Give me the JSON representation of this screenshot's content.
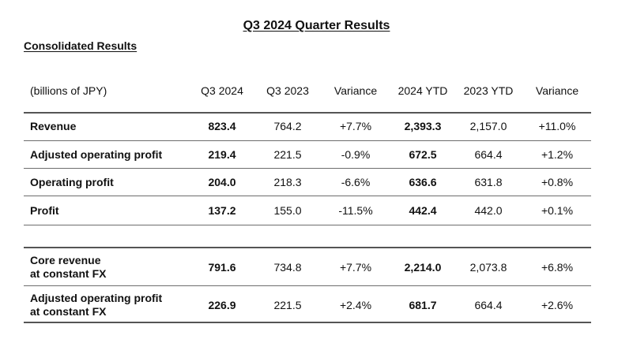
{
  "title": "Q3 2024 Quarter Results",
  "subtitle": "Consolidated Results",
  "headers": {
    "unit": "(billions of JPY)",
    "q3_2024": "Q3 2024",
    "q3_2023": "Q3 2023",
    "variance_q": "Variance",
    "ytd_2024": "2024 YTD",
    "ytd_2023": "2023 YTD",
    "variance_ytd": "Variance"
  },
  "rows": [
    {
      "label": "Revenue",
      "label2": "",
      "q3_2024": "823.4",
      "q3_2023": "764.2",
      "variance_q": "+7.7%",
      "ytd_2024": "2,393.3",
      "ytd_2023": "2,157.0",
      "variance_ytd": "+11.0%"
    },
    {
      "label": "Adjusted operating profit",
      "label2": "",
      "q3_2024": "219.4",
      "q3_2023": "221.5",
      "variance_q": "-0.9%",
      "ytd_2024": "672.5",
      "ytd_2023": "664.4",
      "variance_ytd": "+1.2%"
    },
    {
      "label": "Operating profit",
      "label2": "",
      "q3_2024": "204.0",
      "q3_2023": "218.3",
      "variance_q": "-6.6%",
      "ytd_2024": "636.6",
      "ytd_2023": "631.8",
      "variance_ytd": "+0.8%"
    },
    {
      "label": "Profit",
      "label2": "",
      "q3_2024": "137.2",
      "q3_2023": "155.0",
      "variance_q": "-11.5%",
      "ytd_2024": "442.4",
      "ytd_2023": "442.0",
      "variance_ytd": "+0.1%"
    },
    {
      "label": "Core revenue",
      "label2": "at constant FX",
      "q3_2024": "791.6",
      "q3_2023": "734.8",
      "variance_q": "+7.7%",
      "ytd_2024": "2,214.0",
      "ytd_2023": "2,073.8",
      "variance_ytd": "+6.8%"
    },
    {
      "label": "Adjusted operating profit",
      "label2": "at constant FX",
      "q3_2024": "226.9",
      "q3_2023": "221.5",
      "variance_q": "+2.4%",
      "ytd_2024": "681.7",
      "ytd_2023": "664.4",
      "variance_ytd": "+2.6%"
    }
  ]
}
